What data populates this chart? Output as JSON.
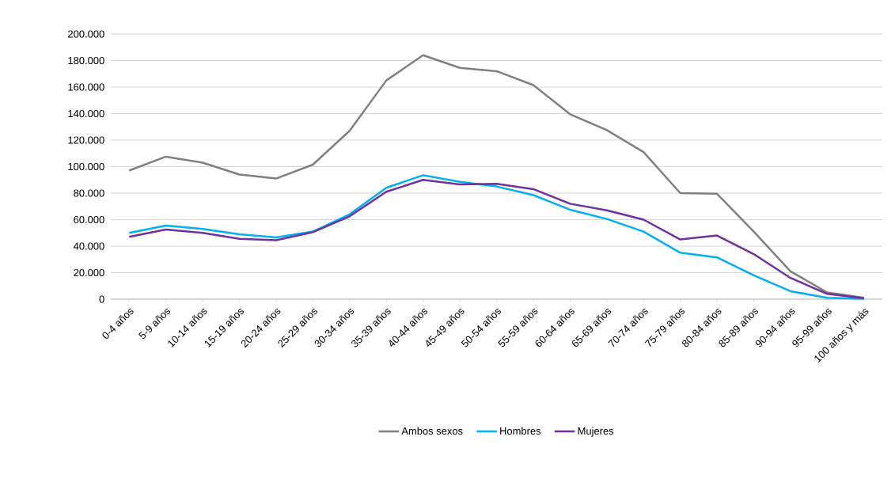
{
  "chart_data": {
    "type": "line",
    "categories": [
      "0-4 años",
      "5-9 años",
      "10-14 años",
      "15-19 años",
      "20-24 años",
      "25-29 años",
      "30-34 años",
      "35-39 años",
      "40-44 años",
      "45-49 años",
      "50-54 años",
      "55-59 años",
      "60-64 años",
      "65-69 años",
      "70-74 años",
      "75-79 años",
      "80-84 años",
      "85-89 años",
      "90-94 años",
      "95-99 años",
      "100 años y más"
    ],
    "series": [
      {
        "name": "Ambos sexos",
        "color": "#808080",
        "values": [
          97000,
          107500,
          103000,
          94000,
          91000,
          101500,
          127000,
          165000,
          184000,
          174500,
          172000,
          161500,
          139500,
          127500,
          111000,
          80000,
          79500,
          51000,
          21000,
          5000,
          1000
        ]
      },
      {
        "name": "Hombres",
        "color": "#00b0f0",
        "values": [
          50000,
          55500,
          53000,
          49000,
          46500,
          51000,
          64000,
          84000,
          93500,
          88500,
          85000,
          78500,
          67500,
          60500,
          51000,
          35000,
          31500,
          18000,
          6000,
          1000,
          300
        ]
      },
      {
        "name": "Mujeres",
        "color": "#7030a0",
        "values": [
          47000,
          52500,
          50000,
          45500,
          44500,
          50500,
          62500,
          81000,
          90000,
          86500,
          87000,
          83000,
          72000,
          67000,
          60000,
          45000,
          48000,
          34000,
          16000,
          4000,
          700
        ]
      }
    ],
    "ylim": [
      0,
      200000
    ],
    "yticks": [
      0,
      {
        "value": 20000,
        "label": "20.000"
      },
      {
        "value": 40000,
        "label": "40.000"
      },
      {
        "value": 60000,
        "label": "60.000"
      },
      {
        "value": 80000,
        "label": "80.000"
      },
      {
        "value": 100000,
        "label": "100.000"
      },
      {
        "value": 120000,
        "label": "120.000"
      },
      {
        "value": 140000,
        "label": "140.000"
      },
      {
        "value": 160000,
        "label": "160.000"
      },
      {
        "value": 180000,
        "label": "180.000"
      },
      {
        "value": 200000,
        "label": "200.000"
      }
    ],
    "grid": "y",
    "legend": "bottom",
    "marker": "none",
    "line_style": "solid"
  }
}
